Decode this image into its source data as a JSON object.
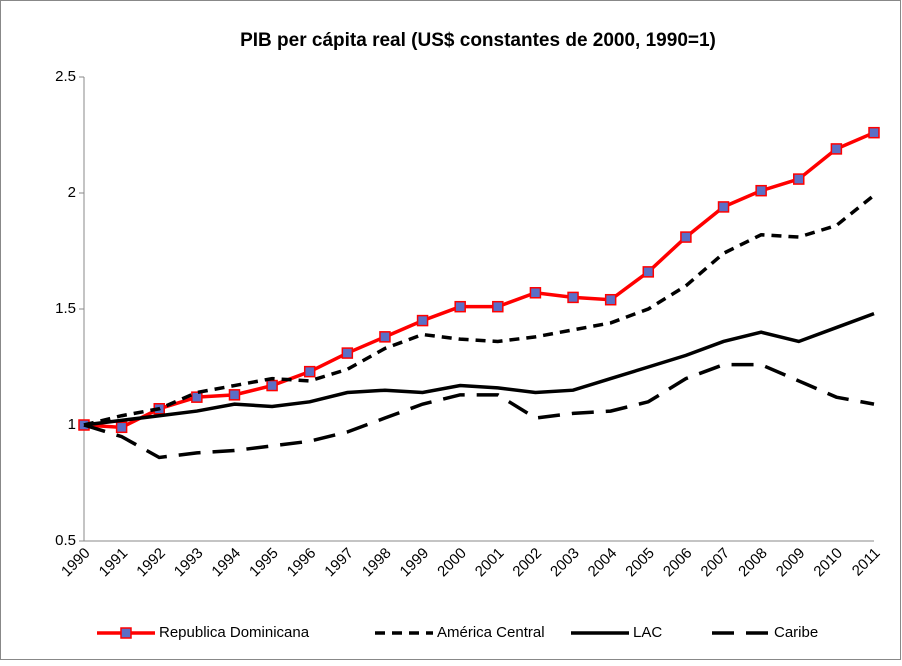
{
  "chart_data": {
    "type": "line",
    "title": "PIB per cápita real (US$ constantes de 2000, 1990=1)",
    "categories": [
      "1990",
      "1991",
      "1992",
      "1993",
      "1994",
      "1995",
      "1996",
      "1997",
      "1998",
      "1999",
      "2000",
      "2001",
      "2002",
      "2003",
      "2004",
      "2005",
      "2006",
      "2007",
      "2008",
      "2009",
      "2010",
      "2011"
    ],
    "series": [
      {
        "name": "Republica Dominicana",
        "color": "#ff0000",
        "dash": "solid",
        "marker": "square",
        "marker_color": "#5b6fc6",
        "values": [
          1.0,
          0.99,
          1.07,
          1.12,
          1.13,
          1.17,
          1.23,
          1.31,
          1.38,
          1.45,
          1.51,
          1.51,
          1.57,
          1.55,
          1.54,
          1.66,
          1.81,
          1.94,
          2.01,
          2.06,
          2.19,
          2.26
        ]
      },
      {
        "name": "América Central",
        "color": "#000000",
        "dash": "short",
        "values": [
          1.0,
          1.04,
          1.07,
          1.14,
          1.17,
          1.2,
          1.19,
          1.24,
          1.33,
          1.39,
          1.37,
          1.36,
          1.38,
          1.41,
          1.44,
          1.5,
          1.6,
          1.74,
          1.82,
          1.81,
          1.86,
          1.99
        ]
      },
      {
        "name": "LAC",
        "color": "#000000",
        "dash": "solid",
        "values": [
          1.0,
          1.02,
          1.04,
          1.06,
          1.09,
          1.08,
          1.1,
          1.14,
          1.15,
          1.14,
          1.17,
          1.16,
          1.14,
          1.15,
          1.2,
          1.25,
          1.3,
          1.36,
          1.4,
          1.36,
          1.42,
          1.48
        ]
      },
      {
        "name": "Caribe",
        "color": "#000000",
        "dash": "long",
        "values": [
          1.0,
          0.95,
          0.86,
          0.88,
          0.89,
          0.91,
          0.93,
          0.97,
          1.03,
          1.09,
          1.13,
          1.13,
          1.03,
          1.05,
          1.06,
          1.1,
          1.2,
          1.26,
          1.26,
          1.19,
          1.12,
          1.09
        ]
      }
    ],
    "ylim": [
      0.5,
      2.5
    ],
    "yticks": [
      0.5,
      1,
      1.5,
      2,
      2.5
    ],
    "grid": false,
    "legend": "bottom"
  }
}
